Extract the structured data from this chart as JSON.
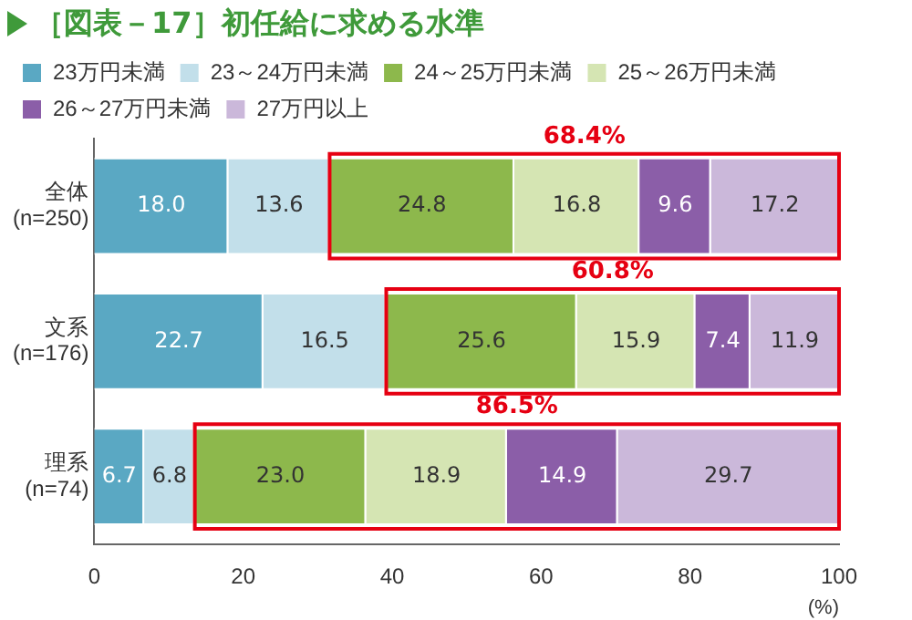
{
  "chart_data": {
    "type": "bar",
    "orientation": "horizontal",
    "stacked": true,
    "title": "［図表－17］初任給に求める水準",
    "categories": [
      "全体\n(n=250)",
      "文系\n(n=176)",
      "理系\n(n=74)"
    ],
    "series": [
      {
        "name": "23万円未満",
        "color": "#5aa8c3",
        "values": [
          18,
          22.7,
          6.7
        ],
        "value_labels": [
          "18.0",
          "22.7",
          "6.7"
        ]
      },
      {
        "name": "23～24万円未満",
        "color": "#c2dfea",
        "values": [
          13.6,
          16.5,
          6.8
        ],
        "value_labels": [
          "13.6",
          "16.5",
          "6.8"
        ]
      },
      {
        "name": "24～25万円未満",
        "color": "#8db84c",
        "values": [
          24.8,
          25.6,
          23
        ],
        "value_labels": [
          "24.8",
          "25.6",
          "23.0"
        ]
      },
      {
        "name": "25～26万円未満",
        "color": "#d5e5b3",
        "values": [
          16.8,
          15.9,
          18.9
        ],
        "value_labels": [
          "16.8",
          "15.9",
          "18.9"
        ]
      },
      {
        "name": "26～27万円未満",
        "color": "#8b5ea8",
        "values": [
          9.6,
          7.4,
          14.9
        ],
        "value_labels": [
          "9.6",
          "7.4",
          "14.9"
        ]
      },
      {
        "name": "27万円以上",
        "color": "#cbb8da",
        "values": [
          17.2,
          11.9,
          29.7
        ],
        "value_labels": [
          "17.2",
          "11.9",
          "29.7"
        ]
      }
    ],
    "xlim": [
      0,
      100
    ],
    "xticks": [
      0,
      20,
      40,
      60,
      80,
      100
    ],
    "xlabel": "(%)",
    "grid": false,
    "legend": "top",
    "annotations": [
      "68.4%",
      "60.8%",
      "86.5%"
    ]
  }
}
